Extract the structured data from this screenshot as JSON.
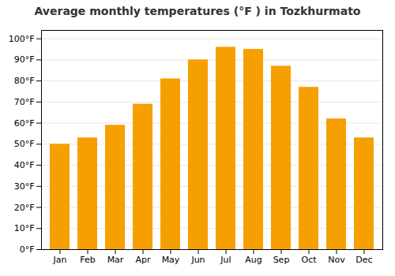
{
  "chart_data": {
    "type": "bar",
    "title": "Average monthly temperatures (°F ) in Tozkhurmato",
    "categories": [
      "Jan",
      "Feb",
      "Mar",
      "Apr",
      "May",
      "Jun",
      "Jul",
      "Aug",
      "Sep",
      "Oct",
      "Nov",
      "Dec"
    ],
    "values": [
      50,
      53,
      59,
      69,
      81,
      90,
      96,
      95,
      87,
      77,
      62,
      53
    ],
    "color": "#F5A000",
    "ylim": [
      0,
      104
    ],
    "yticks": [
      {
        "value": 0,
        "label": "0°F"
      },
      {
        "value": 10,
        "label": "10°F"
      },
      {
        "value": 20,
        "label": "20°F"
      },
      {
        "value": 30,
        "label": "30°F"
      },
      {
        "value": 40,
        "label": "40°F"
      },
      {
        "value": 50,
        "label": "50°F"
      },
      {
        "value": 60,
        "label": "60°F"
      },
      {
        "value": 70,
        "label": "70°F"
      },
      {
        "value": 80,
        "label": "80°F"
      },
      {
        "value": 90,
        "label": "90°F"
      },
      {
        "value": 100,
        "label": "100°F"
      }
    ],
    "grid": true
  }
}
